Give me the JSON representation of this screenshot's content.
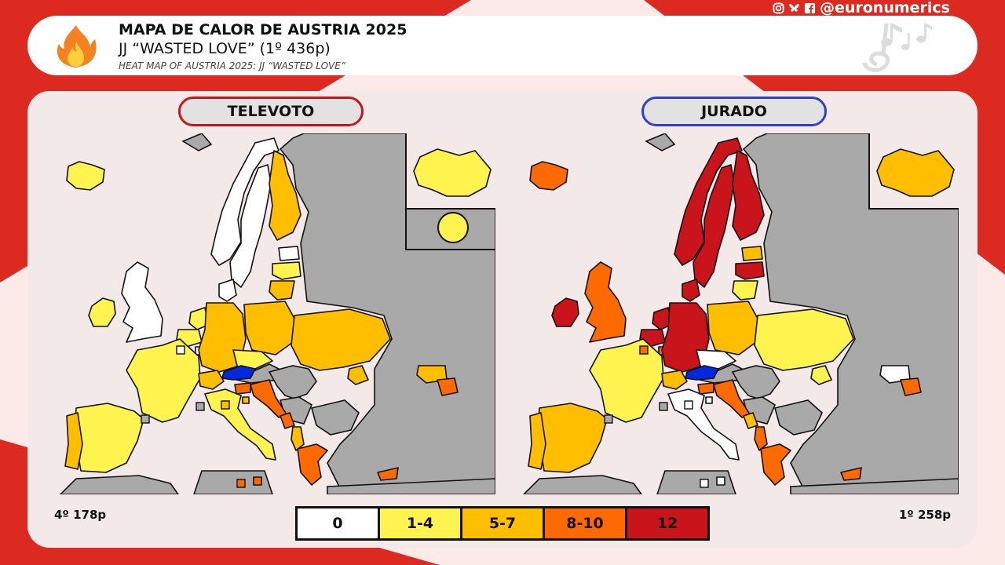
{
  "header": {
    "title": "MAPA DE CALOR DE AUSTRIA 2025",
    "subtitle": "JJ “WASTED LOVE” (1º 436p)",
    "english_title": "HEAT MAP OF AUSTRIA 2025: JJ “WASTED LOVE”",
    "handle": "@euronumerics",
    "social_icons": [
      "instagram-icon",
      "bluesky-icon",
      "facebook-icon"
    ],
    "logo_icon": "fire-icon",
    "decoration_icon": "music-notes-icon"
  },
  "panels": {
    "televote": {
      "label": "TELEVOTO",
      "accent": "#c8141a",
      "result": "4º 178p",
      "country_colors": {
        "iceland": "#fff44f",
        "ireland": "#fff44f",
        "united_kingdom": "#ffffff",
        "norway": "#ffffff",
        "sweden": "#ffffff",
        "finland": "#ffbf00",
        "estonia": "#ffffff",
        "latvia": "#fff44f",
        "lithuania": "#ffbf00",
        "denmark": "#ffffff",
        "netherlands": "#fff44f",
        "belgium": "#fff44f",
        "luxembourg": "#ffffff",
        "germany": "#ffbf00",
        "poland": "#ffbf00",
        "czechia": "#fff44f",
        "ukraine": "#ffbf00",
        "france": "#fff44f",
        "switzerland": "#ffbf00",
        "spain": "#fff44f",
        "portugal": "#ffbf00",
        "italy": "#fff44f",
        "slovenia": "#ff6a00",
        "croatia": "#ff6a00",
        "montenegro": "#ff6a00",
        "albania": "#ffbf00",
        "greece": "#ff6a00",
        "malta": "#ff6a00",
        "cyprus": "#ff6a00",
        "georgia": "#ffbf00",
        "armenia": "#ff6a00",
        "moldova": "#ffbf00",
        "australia": "#fff44f",
        "san_marino": "#ffbf00",
        "monaco": "#a9a9a9",
        "andorra": "#a9a9a9",
        "world": "#fff44f"
      }
    },
    "jury": {
      "label": "JURADO",
      "accent": "#2e3fc9",
      "result": "1º 258p",
      "country_colors": {
        "iceland": "#ff6a00",
        "ireland": "#c8141a",
        "united_kingdom": "#ff6a00",
        "norway": "#c8141a",
        "sweden": "#c8141a",
        "finland": "#c8141a",
        "estonia": "#ffbf00",
        "latvia": "#c8141a",
        "lithuania": "#fff44f",
        "denmark": "#c8141a",
        "netherlands": "#c8141a",
        "belgium": "#c8141a",
        "luxembourg": "#ff6a00",
        "germany": "#c8141a",
        "poland": "#ffbf00",
        "czechia": "#ffffff",
        "ukraine": "#fff44f",
        "france": "#fff44f",
        "switzerland": "#ffbf00",
        "spain": "#ffbf00",
        "portugal": "#ffbf00",
        "italy": "#ffffff",
        "slovenia": "#ff6a00",
        "croatia": "#ff6a00",
        "montenegro": "#ffbf00",
        "albania": "#ff6a00",
        "greece": "#ff6a00",
        "malta": "#ffffff",
        "cyprus": "#ff6a00",
        "georgia": "#ffffff",
        "armenia": "#ff6a00",
        "moldova": "#fff44f",
        "australia": "#ffbf00",
        "san_marino": "#ffffff",
        "monaco": "#a9a9a9",
        "andorra": "#a9a9a9",
        "world": null
      }
    }
  },
  "host_color": "#0029e0",
  "non_voting_color": "#a9a9a9",
  "legend": [
    {
      "label": "0",
      "color": "#ffffff"
    },
    {
      "label": "1-4",
      "color": "#fff44f"
    },
    {
      "label": "5-7",
      "color": "#ffbf00"
    },
    {
      "label": "8-10",
      "color": "#ff6a00"
    },
    {
      "label": "12",
      "color": "#c8141a"
    }
  ]
}
